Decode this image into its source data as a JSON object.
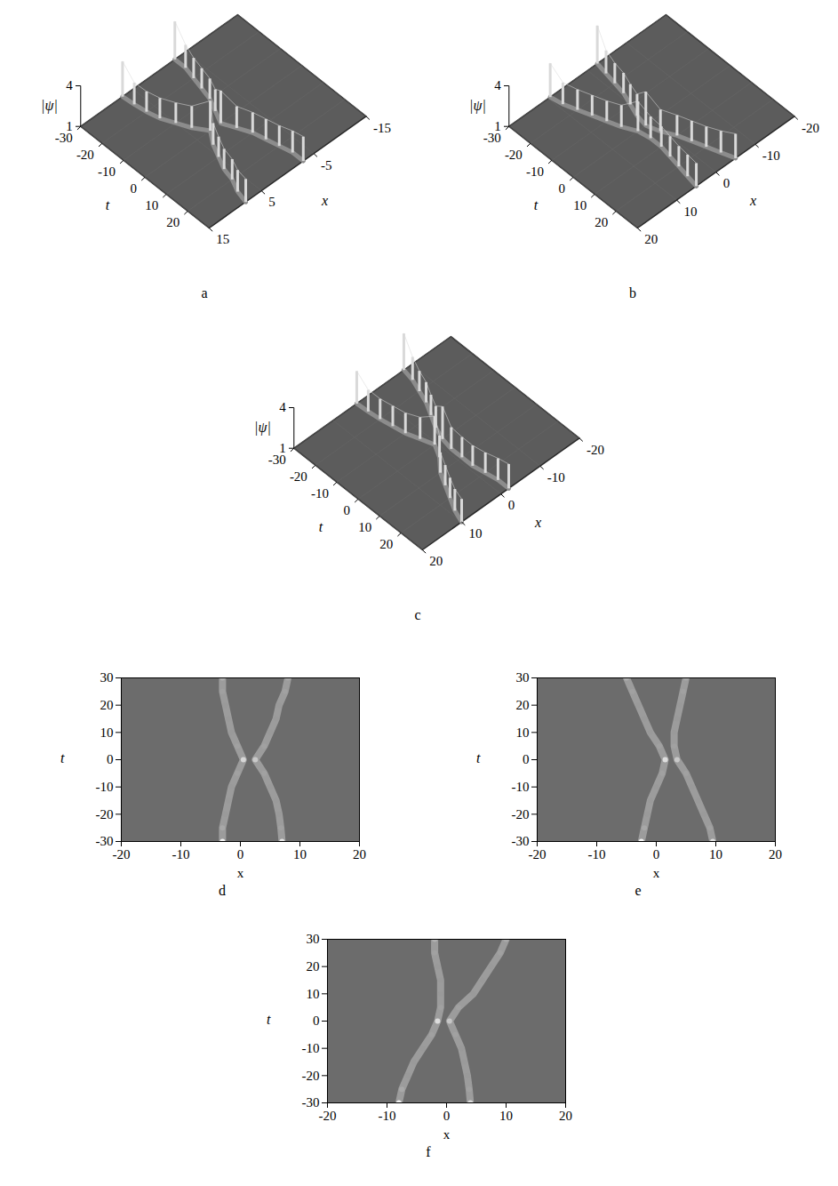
{
  "chart_data": [
    {
      "type": "surface",
      "caption": "a",
      "xlabel": "x",
      "ylabel": "t",
      "zlabel": "|ψ|",
      "xlim": [
        -15,
        15
      ],
      "xticks": [
        -15,
        -5,
        5,
        15
      ],
      "ylim": [
        -30,
        30
      ],
      "yticks": [
        -30,
        -20,
        -10,
        0,
        10,
        20
      ],
      "zlim": [
        1,
        4
      ],
      "zticks": [
        1,
        4
      ],
      "series": [
        {
          "color": "#d9d9d9",
          "t": [
            -30,
            -25,
            -20,
            -15,
            -10,
            -5,
            0,
            5,
            10,
            15,
            20,
            25,
            30
          ],
          "x": [
            -3,
            -3,
            -2.5,
            -2,
            -1.5,
            -0.5,
            0.5,
            -0.5,
            -1.5,
            -2,
            -2.5,
            -3,
            -3
          ],
          "values": [
            3.8,
            2.7,
            2.5,
            2.5,
            2.5,
            2.6,
            3.4,
            2.6,
            2.5,
            2.5,
            2.5,
            2.6,
            2.8
          ]
        },
        {
          "color": "#d9d9d9",
          "t": [
            -30,
            -25,
            -20,
            -15,
            -10,
            -5,
            0,
            5,
            10,
            15,
            20,
            25,
            30
          ],
          "x": [
            7,
            6.8,
            6.5,
            6,
            5,
            4,
            2.5,
            4,
            5,
            6,
            6.5,
            7.5,
            8
          ],
          "values": [
            3.6,
            2.6,
            2.5,
            2.5,
            2.5,
            2.6,
            3.2,
            2.6,
            2.5,
            2.5,
            2.5,
            2.6,
            2.7
          ]
        }
      ]
    },
    {
      "type": "surface",
      "caption": "b",
      "xlabel": "x",
      "ylabel": "t",
      "zlabel": "|ψ|",
      "xlim": [
        -20,
        20
      ],
      "xticks": [
        -20,
        -10,
        0,
        10,
        20
      ],
      "ylim": [
        -30,
        30
      ],
      "yticks": [
        -30,
        -20,
        -10,
        0,
        10,
        20
      ],
      "zlim": [
        1,
        4
      ],
      "zticks": [
        1,
        4
      ],
      "series": [
        {
          "color": "#d9d9d9",
          "t": [
            -30,
            -25,
            -20,
            -15,
            -10,
            -5,
            0,
            5,
            10,
            15,
            20,
            25,
            30
          ],
          "x": [
            -2.5,
            -2,
            -1.5,
            -1,
            0,
            1,
            1.5,
            0.5,
            -1,
            -2,
            -3,
            -4,
            -5
          ],
          "values": [
            3.8,
            2.7,
            2.5,
            2.5,
            2.5,
            2.6,
            3.5,
            2.6,
            2.5,
            2.5,
            2.5,
            2.6,
            2.8
          ]
        },
        {
          "color": "#d9d9d9",
          "t": [
            -30,
            -25,
            -20,
            -15,
            -10,
            -5,
            0,
            5,
            10,
            15,
            20,
            25,
            30
          ],
          "x": [
            9.5,
            9,
            8,
            7,
            6,
            5,
            3.5,
            3,
            3,
            3.5,
            4,
            4.5,
            5
          ],
          "values": [
            3.5,
            2.6,
            2.5,
            2.5,
            2.5,
            2.6,
            3.2,
            2.6,
            2.5,
            2.5,
            2.5,
            2.6,
            2.7
          ]
        }
      ]
    },
    {
      "type": "surface",
      "caption": "c",
      "xlabel": "x",
      "ylabel": "t",
      "zlabel": "|ψ|",
      "xlim": [
        -20,
        20
      ],
      "xticks": [
        -20,
        -10,
        0,
        10,
        20
      ],
      "ylim": [
        -30,
        30
      ],
      "yticks": [
        -30,
        -20,
        -10,
        0,
        10,
        20
      ],
      "zlim": [
        1,
        4
      ],
      "zticks": [
        1,
        4
      ],
      "series": [
        {
          "color": "#d9d9d9",
          "t": [
            -30,
            -25,
            -20,
            -15,
            -10,
            -5,
            0,
            5,
            10,
            15,
            20,
            25,
            30
          ],
          "x": [
            -8,
            -7.5,
            -6.5,
            -5.5,
            -4,
            -2.5,
            -1.5,
            -1,
            -1,
            -1,
            -1.5,
            -2,
            -2
          ],
          "values": [
            3.7,
            2.7,
            2.5,
            2.5,
            2.5,
            2.6,
            3.4,
            2.6,
            2.5,
            2.5,
            2.5,
            2.6,
            2.8
          ]
        },
        {
          "color": "#d9d9d9",
          "t": [
            -30,
            -25,
            -20,
            -15,
            -10,
            -5,
            0,
            5,
            10,
            15,
            20,
            25,
            30
          ],
          "x": [
            4,
            3.8,
            3.5,
            3,
            2.5,
            1.5,
            0.5,
            2,
            4.5,
            6,
            7.5,
            9,
            10
          ],
          "values": [
            3.4,
            2.6,
            2.5,
            2.5,
            2.5,
            2.6,
            3.1,
            2.6,
            2.5,
            2.5,
            2.5,
            2.6,
            2.7
          ]
        }
      ]
    },
    {
      "type": "heatmap",
      "caption": "d",
      "xlabel": "x",
      "ylabel": "t",
      "xlim": [
        -20,
        20
      ],
      "xticks": [
        -20,
        -10,
        0,
        10,
        20
      ],
      "ylim": [
        -30,
        30
      ],
      "yticks": [
        -30,
        -20,
        -10,
        0,
        10,
        20,
        30
      ],
      "series": [
        {
          "color": "#a9a9a9",
          "t": [
            -30,
            -25,
            -20,
            -15,
            -10,
            -5,
            0,
            5,
            10,
            15,
            20,
            25,
            30
          ],
          "x": [
            -3,
            -3,
            -2.5,
            -2,
            -1.5,
            -0.5,
            0.5,
            -0.5,
            -1.5,
            -2,
            -2.5,
            -3,
            -3
          ],
          "values": [
            3.8,
            2.7,
            2.5,
            2.5,
            2.5,
            2.6,
            3.4,
            2.6,
            2.5,
            2.5,
            2.5,
            2.6,
            2.8
          ]
        },
        {
          "color": "#a9a9a9",
          "t": [
            -30,
            -25,
            -20,
            -15,
            -10,
            -5,
            0,
            5,
            10,
            15,
            20,
            25,
            30
          ],
          "x": [
            7,
            6.8,
            6.5,
            6,
            5,
            4,
            2.5,
            4,
            5,
            6,
            6.5,
            7.5,
            8
          ],
          "values": [
            3.6,
            2.6,
            2.5,
            2.5,
            2.5,
            2.6,
            3.2,
            2.6,
            2.5,
            2.5,
            2.5,
            2.6,
            2.7
          ]
        }
      ]
    },
    {
      "type": "heatmap",
      "caption": "e",
      "xlabel": "x",
      "ylabel": "t",
      "xlim": [
        -20,
        20
      ],
      "xticks": [
        -20,
        -10,
        0,
        10,
        20
      ],
      "ylim": [
        -30,
        30
      ],
      "yticks": [
        -30,
        -20,
        -10,
        0,
        10,
        20,
        30
      ],
      "series": [
        {
          "color": "#a9a9a9",
          "t": [
            -30,
            -25,
            -20,
            -15,
            -10,
            -5,
            0,
            5,
            10,
            15,
            20,
            25,
            30
          ],
          "x": [
            -2.5,
            -2,
            -1.5,
            -1,
            0,
            1,
            1.5,
            0.5,
            -1,
            -2,
            -3,
            -4,
            -5
          ],
          "values": [
            3.8,
            2.7,
            2.5,
            2.5,
            2.5,
            2.6,
            3.5,
            2.6,
            2.5,
            2.5,
            2.5,
            2.6,
            2.8
          ]
        },
        {
          "color": "#a9a9a9",
          "t": [
            -30,
            -25,
            -20,
            -15,
            -10,
            -5,
            0,
            5,
            10,
            15,
            20,
            25,
            30
          ],
          "x": [
            9.5,
            9,
            8,
            7,
            6,
            5,
            3.5,
            3,
            3,
            3.5,
            4,
            4.5,
            5
          ],
          "values": [
            3.5,
            2.6,
            2.5,
            2.5,
            2.5,
            2.6,
            3.2,
            2.6,
            2.5,
            2.5,
            2.5,
            2.6,
            2.7
          ]
        }
      ]
    },
    {
      "type": "heatmap",
      "caption": "f",
      "xlabel": "x",
      "ylabel": "t",
      "xlim": [
        -20,
        20
      ],
      "xticks": [
        -20,
        -10,
        0,
        10,
        20
      ],
      "ylim": [
        -30,
        30
      ],
      "yticks": [
        -30,
        -20,
        -10,
        0,
        10,
        20,
        30
      ],
      "series": [
        {
          "color": "#a9a9a9",
          "t": [
            -30,
            -25,
            -20,
            -15,
            -10,
            -5,
            0,
            5,
            10,
            15,
            20,
            25,
            30
          ],
          "x": [
            -8,
            -7.5,
            -6.5,
            -5.5,
            -4,
            -2.5,
            -1.5,
            -1,
            -1,
            -1,
            -1.5,
            -2,
            -2
          ],
          "values": [
            3.7,
            2.7,
            2.5,
            2.5,
            2.5,
            2.6,
            3.4,
            2.6,
            2.5,
            2.5,
            2.5,
            2.6,
            2.8
          ]
        },
        {
          "color": "#a9a9a9",
          "t": [
            -30,
            -25,
            -20,
            -15,
            -10,
            -5,
            0,
            5,
            10,
            15,
            20,
            25,
            30
          ],
          "x": [
            4,
            3.8,
            3.5,
            3,
            2.5,
            1.5,
            0.5,
            2,
            4.5,
            6,
            7.5,
            9,
            10
          ],
          "values": [
            3.4,
            2.6,
            2.5,
            2.5,
            2.5,
            2.6,
            3.1,
            2.6,
            2.5,
            2.5,
            2.5,
            2.6,
            2.7
          ]
        }
      ]
    }
  ]
}
